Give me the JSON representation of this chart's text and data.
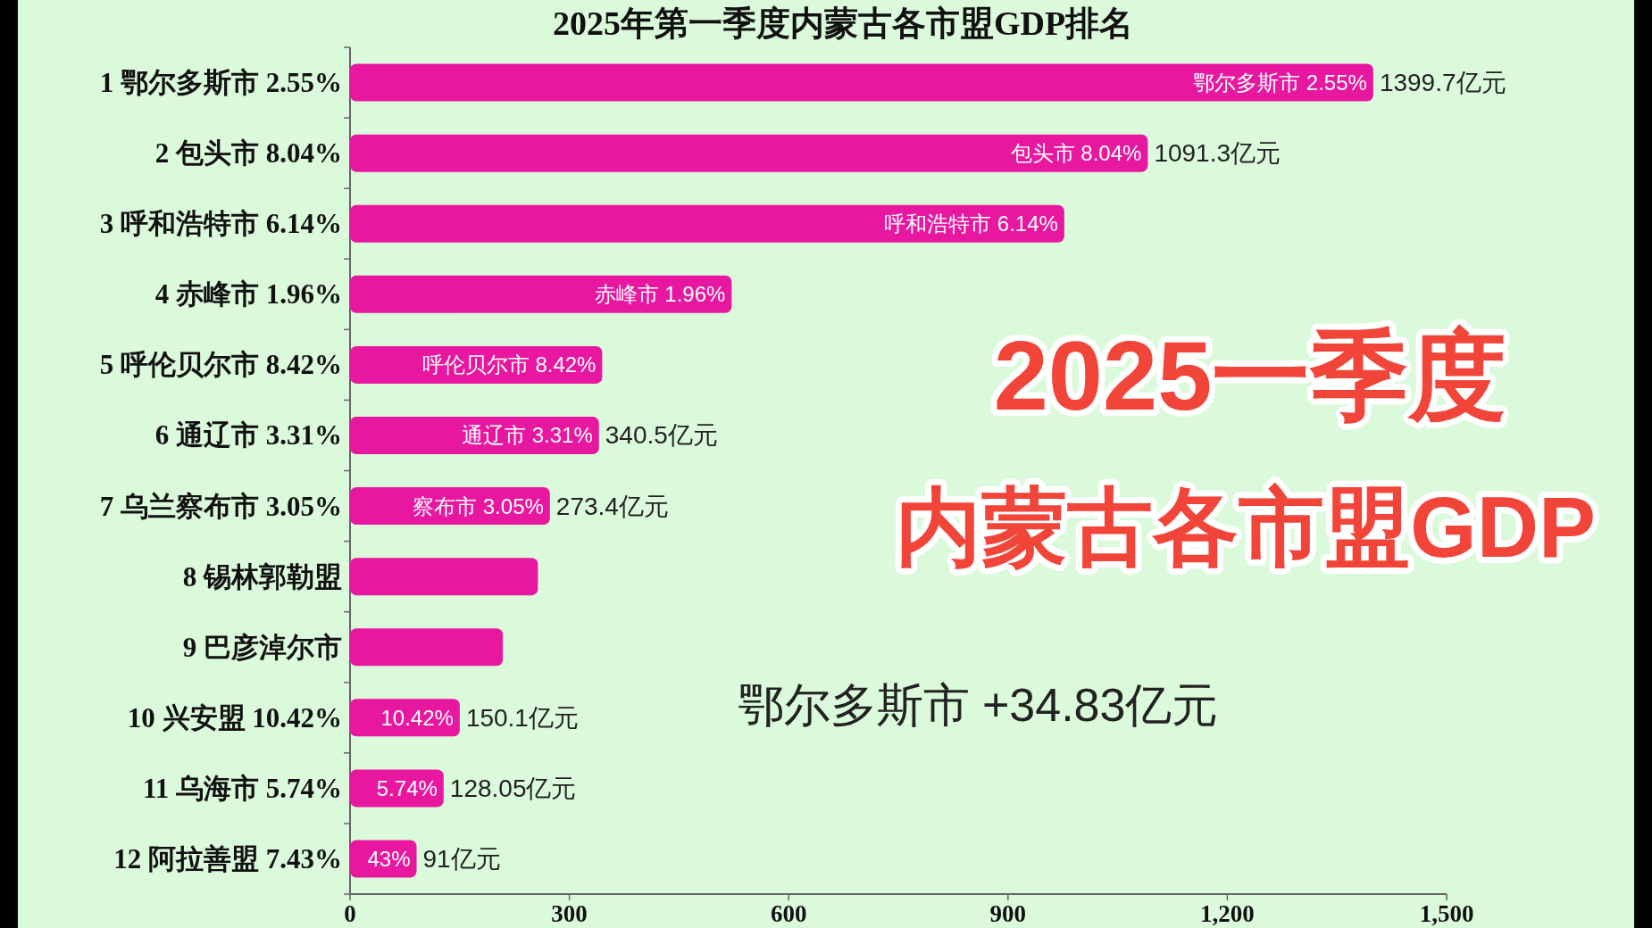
{
  "chart_data": {
    "type": "bar",
    "orientation": "horizontal",
    "title": "2025年第一季度内蒙古各市盟GDP排名",
    "categories": [
      "1 鄂尔多斯市 2.55%",
      "2 包头市 8.04%",
      "3 呼和浩特市 6.14%",
      "4 赤峰市 1.96%",
      "5 呼伦贝尔市 8.42%",
      "6 通辽市 3.31%",
      "7 乌兰察布市 3.05%",
      "8 锡林郭勒盟",
      "9 巴彦淖尔市",
      "10 兴安盟 10.42%",
      "11 乌海市 5.74%",
      "12 阿拉善盟 7.43%"
    ],
    "values": [
      1399.7,
      1091.3,
      977,
      522,
      345,
      340.5,
      273.4,
      257,
      209,
      150.1,
      128.05,
      91
    ],
    "color": "#e8179f",
    "value_labels": [
      "1399.7亿元",
      "1091.3亿元",
      null,
      null,
      null,
      "340.5亿元",
      "273.4亿元",
      null,
      null,
      "150.1亿元",
      "128.05亿元",
      "91亿元"
    ],
    "xlim": [
      0,
      1500
    ],
    "xticks": [
      0,
      300,
      600,
      900,
      {
        "value": 1200,
        "label": "1,200"
      },
      {
        "value": 1500,
        "label": "1,500"
      }
    ],
    "annotations": [
      "2025一季度",
      "内蒙古各市盟GDP",
      "鄂尔多斯市 +34.83亿元",
      {
        "text": "鄂尔多斯市 2.55%",
        "x": 1399.7,
        "y": "1 鄂尔多斯市 2.55%"
      },
      {
        "text": "包头市 8.04%",
        "x": 1091.3,
        "y": "2 包头市 8.04%"
      },
      {
        "text": "呼和浩特市 6.14%",
        "x": 977,
        "y": "3 呼和浩特市 6.14%"
      },
      {
        "text": "赤峰市 1.96%",
        "x": 522,
        "y": "4 赤峰市 1.96%"
      },
      {
        "text": "呼伦贝尔市 8.42%",
        "x": 345,
        "y": "5 呼伦贝尔市 8.42%"
      },
      {
        "text": "通辽市 3.31%",
        "x": 340.5,
        "y": "6 通辽市 3.31%"
      },
      {
        "text": "察布市 3.05%",
        "x": 273.4,
        "y": "7 乌兰察布市 3.05%"
      },
      {
        "text": "10.42%",
        "x": 150.1,
        "y": "10 兴安盟 10.42%"
      },
      {
        "text": "5.74%",
        "x": 128.05,
        "y": "11 乌海市 5.74%"
      },
      {
        "text": "43%",
        "x": 91,
        "y": "12 阿拉善盟 7.43%"
      }
    ]
  }
}
